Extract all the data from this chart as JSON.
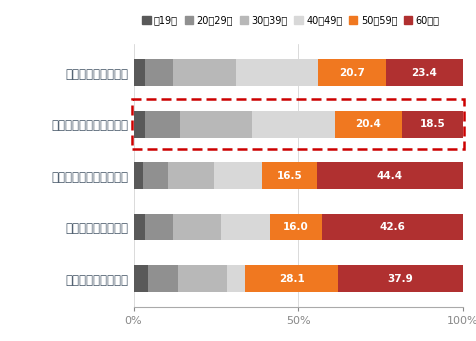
{
  "categories": [
    "レトルトハヤシ市場",
    "ディナーハヤシレトルト",
    "ディナーカレーレトルト",
    "ディナーハヤシルウ",
    "ディナーカレールウ"
  ],
  "age_groups": [
    "～19才",
    "20～29才",
    "30～39才",
    "40～49才",
    "50～59才",
    "60才～"
  ],
  "colors": [
    "#595959",
    "#909090",
    "#b8b8b8",
    "#d8d8d8",
    "#f07820",
    "#b03030"
  ],
  "data": [
    [
      3.5,
      8.5,
      19.0,
      24.9,
      20.7,
      23.4
    ],
    [
      3.5,
      10.5,
      22.0,
      25.1,
      20.4,
      18.5
    ],
    [
      3.0,
      7.5,
      14.0,
      14.6,
      16.5,
      44.4
    ],
    [
      3.5,
      8.5,
      14.5,
      14.9,
      16.0,
      42.6
    ],
    [
      4.5,
      9.0,
      15.0,
      5.5,
      28.1,
      37.9
    ]
  ],
  "labeled_values": [
    [
      "20.7",
      "23.4"
    ],
    [
      "20.4",
      "18.5"
    ],
    [
      "16.5",
      "44.4"
    ],
    [
      "16.0",
      "42.6"
    ],
    [
      "28.1",
      "37.9"
    ]
  ],
  "highlight_row": 1,
  "highlight_color": "#cc0000",
  "background_color": "#ffffff"
}
